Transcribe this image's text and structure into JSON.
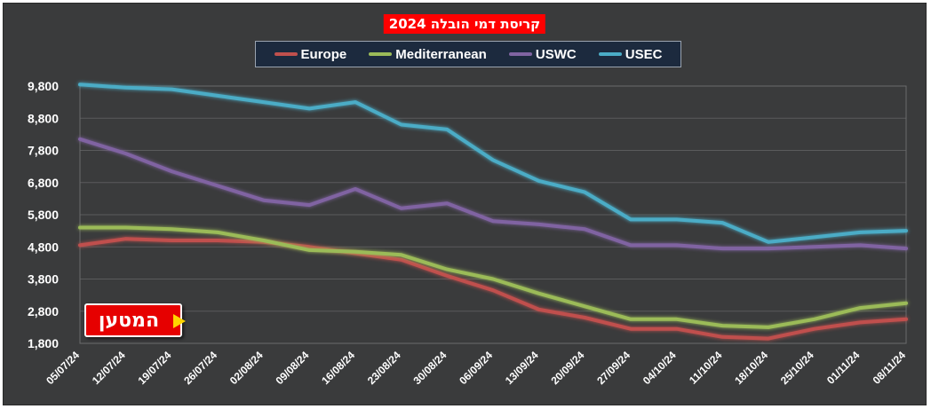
{
  "chart_data": {
    "type": "line",
    "title": "קריסת דמי הובלה 2024",
    "categories": [
      "05/07/24",
      "12/07/24",
      "19/07/24",
      "26/07/24",
      "02/08/24",
      "09/08/24",
      "16/08/24",
      "23/08/24",
      "30/08/24",
      "06/09/24",
      "13/09/24",
      "20/09/24",
      "27/09/24",
      "04/10/24",
      "11/10/24",
      "18/10/24",
      "25/10/24",
      "01/11/24",
      "08/11/24"
    ],
    "y_ticks": [
      "1,800",
      "2,800",
      "3,800",
      "4,800",
      "5,800",
      "6,800",
      "7,800",
      "8,800",
      "9,800"
    ],
    "ylim": [
      1800,
      9800
    ],
    "grid": true,
    "legend_position": "top",
    "series": [
      {
        "name": "Europe",
        "color": "#c0504d",
        "values": [
          4850,
          5050,
          5000,
          5000,
          4950,
          4800,
          4600,
          4400,
          3900,
          3450,
          2850,
          2600,
          2250,
          2250,
          2000,
          1950,
          2250,
          2450,
          2550
        ]
      },
      {
        "name": "Mediterranean",
        "color": "#9bbb59",
        "values": [
          5400,
          5400,
          5350,
          5250,
          5000,
          4700,
          4650,
          4550,
          4100,
          3800,
          3350,
          2950,
          2550,
          2550,
          2350,
          2300,
          2550,
          2900,
          3050
        ]
      },
      {
        "name": "USWC",
        "color": "#8064a2",
        "values": [
          8150,
          7700,
          7150,
          6700,
          6250,
          6100,
          6600,
          6000,
          6150,
          5600,
          5500,
          5350,
          4850,
          4850,
          4750,
          4750,
          4800,
          4850,
          4750
        ]
      },
      {
        "name": "USEC",
        "color": "#4bacc6",
        "values": [
          9850,
          9750,
          9700,
          9500,
          9300,
          9100,
          9300,
          8600,
          8450,
          7500,
          6850,
          6500,
          5650,
          5650,
          5550,
          4950,
          5100,
          5250,
          5300
        ]
      }
    ]
  },
  "logo": {
    "text": "המטען"
  }
}
